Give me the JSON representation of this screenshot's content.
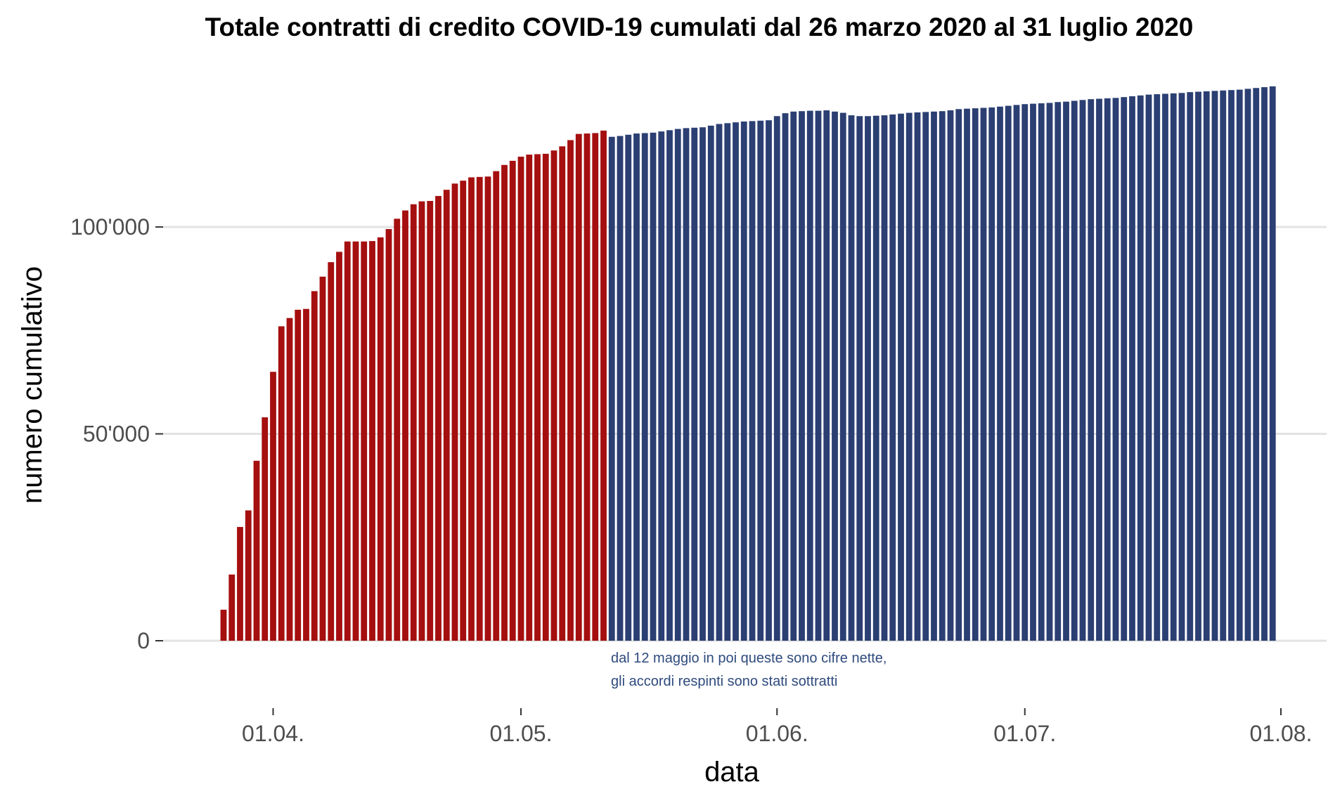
{
  "chart_data": {
    "type": "bar",
    "title": "Totale contratti di credito COVID-19 cumulati dal 26 marzo 2020 al 31 luglio 2020",
    "xlabel": "data",
    "ylabel": "numero cumulativo",
    "x_start": "2020-03-26",
    "x_end": "2020-07-31",
    "x_ticks": [
      {
        "date": "2020-04-01",
        "label": "01.04."
      },
      {
        "date": "2020-05-01",
        "label": "01.05."
      },
      {
        "date": "2020-06-01",
        "label": "01.06."
      },
      {
        "date": "2020-07-01",
        "label": "01.07."
      },
      {
        "date": "2020-08-01",
        "label": "01.08."
      }
    ],
    "y_ticks": [
      {
        "value": 0,
        "label": "0"
      },
      {
        "value": 50000,
        "label": "50'000"
      },
      {
        "value": 100000,
        "label": "100'000"
      }
    ],
    "ylim": [
      0,
      135000
    ],
    "grid": true,
    "colors": {
      "gross": "#a50f0f",
      "net": "#2b3f73"
    },
    "split_date": "2020-05-12",
    "annotation": [
      "dal 12 maggio in poi queste sono cifre nette,",
      "gli accordi respinti sono stati sottratti"
    ],
    "series": [
      {
        "color_key": "gross",
        "x": [
          "2020-03-26",
          "2020-03-27",
          "2020-03-28",
          "2020-03-29",
          "2020-03-30",
          "2020-03-31",
          "2020-04-01",
          "2020-04-02",
          "2020-04-03",
          "2020-04-04",
          "2020-04-05",
          "2020-04-06",
          "2020-04-07",
          "2020-04-08",
          "2020-04-09",
          "2020-04-10",
          "2020-04-11",
          "2020-04-12",
          "2020-04-13",
          "2020-04-14",
          "2020-04-15",
          "2020-04-16",
          "2020-04-17",
          "2020-04-18",
          "2020-04-19",
          "2020-04-20",
          "2020-04-21",
          "2020-04-22",
          "2020-04-23",
          "2020-04-24",
          "2020-04-25",
          "2020-04-26",
          "2020-04-27",
          "2020-04-28",
          "2020-04-29",
          "2020-04-30",
          "2020-05-01",
          "2020-05-02",
          "2020-05-03",
          "2020-05-04",
          "2020-05-05",
          "2020-05-06",
          "2020-05-07",
          "2020-05-08",
          "2020-05-09",
          "2020-05-10",
          "2020-05-11"
        ],
        "values": [
          7500,
          16000,
          27500,
          31500,
          43500,
          54000,
          65000,
          76000,
          78000,
          80000,
          80200,
          84500,
          88000,
          91500,
          94000,
          96500,
          96500,
          96500,
          96600,
          97500,
          99500,
          102000,
          104000,
          105500,
          106200,
          106300,
          107500,
          109000,
          110500,
          111200,
          112000,
          112100,
          112200,
          113500,
          115000,
          116000,
          117000,
          117500,
          117600,
          117700,
          118500,
          119500,
          121000,
          122500,
          122600,
          122700,
          123300
        ]
      },
      {
        "color_key": "net",
        "x": [
          "2020-05-12",
          "2020-05-13",
          "2020-05-14",
          "2020-05-15",
          "2020-05-16",
          "2020-05-17",
          "2020-05-18",
          "2020-05-19",
          "2020-05-20",
          "2020-05-21",
          "2020-05-22",
          "2020-05-23",
          "2020-05-24",
          "2020-05-25",
          "2020-05-26",
          "2020-05-27",
          "2020-05-28",
          "2020-05-29",
          "2020-05-30",
          "2020-05-31",
          "2020-06-01",
          "2020-06-02",
          "2020-06-03",
          "2020-06-04",
          "2020-06-05",
          "2020-06-06",
          "2020-06-07",
          "2020-06-08",
          "2020-06-09",
          "2020-06-10",
          "2020-06-11",
          "2020-06-12",
          "2020-06-13",
          "2020-06-14",
          "2020-06-15",
          "2020-06-16",
          "2020-06-17",
          "2020-06-18",
          "2020-06-19",
          "2020-06-20",
          "2020-06-21",
          "2020-06-22",
          "2020-06-23",
          "2020-06-24",
          "2020-06-25",
          "2020-06-26",
          "2020-06-27",
          "2020-06-28",
          "2020-06-29",
          "2020-06-30",
          "2020-07-01",
          "2020-07-02",
          "2020-07-03",
          "2020-07-04",
          "2020-07-05",
          "2020-07-06",
          "2020-07-07",
          "2020-07-08",
          "2020-07-09",
          "2020-07-10",
          "2020-07-11",
          "2020-07-12",
          "2020-07-13",
          "2020-07-14",
          "2020-07-15",
          "2020-07-16",
          "2020-07-17",
          "2020-07-18",
          "2020-07-19",
          "2020-07-20",
          "2020-07-21",
          "2020-07-22",
          "2020-07-23",
          "2020-07-24",
          "2020-07-25",
          "2020-07-26",
          "2020-07-27",
          "2020-07-28",
          "2020-07-29",
          "2020-07-30",
          "2020-07-31"
        ],
        "values": [
          121800,
          122000,
          122300,
          122600,
          122700,
          122800,
          123100,
          123400,
          123700,
          123900,
          124000,
          124100,
          124500,
          124900,
          125100,
          125300,
          125500,
          125600,
          125700,
          125800,
          126800,
          127500,
          127900,
          128000,
          128100,
          128100,
          128200,
          127900,
          127600,
          127000,
          126800,
          126800,
          126900,
          127000,
          127200,
          127400,
          127600,
          127700,
          127800,
          127900,
          128000,
          128200,
          128500,
          128600,
          128700,
          128800,
          128900,
          129100,
          129300,
          129500,
          129700,
          129800,
          129900,
          130000,
          130200,
          130300,
          130500,
          130700,
          130900,
          131000,
          131100,
          131200,
          131400,
          131600,
          131800,
          132000,
          132100,
          132200,
          132300,
          132400,
          132600,
          132700,
          132800,
          132900,
          133000,
          133100,
          133200,
          133400,
          133600,
          133800,
          134000
        ]
      }
    ]
  }
}
